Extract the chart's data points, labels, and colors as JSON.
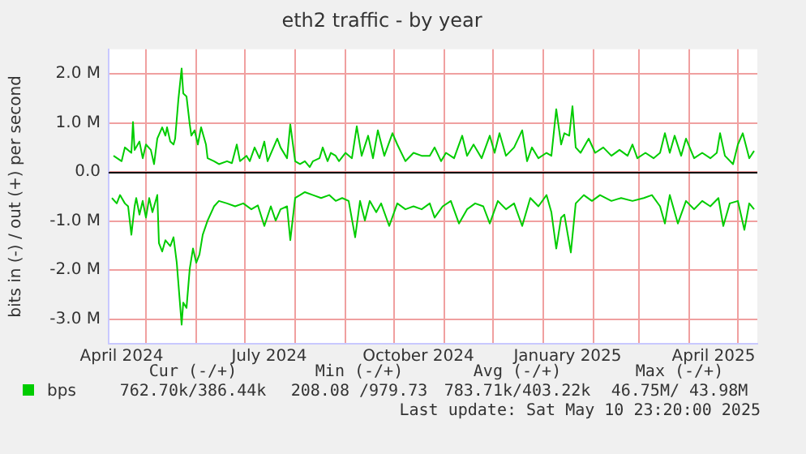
{
  "chart_data": {
    "type": "line",
    "title": "eth2 traffic - by year",
    "ylabel": "bits in (-) / out (+) per second",
    "xlim": [
      "2024-04-08",
      "2025-05-13"
    ],
    "xticks": [
      {
        "value": "2024-04-16",
        "label": "April 2024"
      },
      {
        "value": "2024-05-01",
        "label": null
      },
      {
        "value": "2024-06-01",
        "label": null
      },
      {
        "value": "2024-07-01",
        "label": null
      },
      {
        "value": "2024-07-16",
        "label": "July 2024"
      },
      {
        "value": "2024-08-01",
        "label": null
      },
      {
        "value": "2024-09-01",
        "label": null
      },
      {
        "value": "2024-10-01",
        "label": null
      },
      {
        "value": "2024-10-16",
        "label": "October 2024"
      },
      {
        "value": "2024-11-01",
        "label": null
      },
      {
        "value": "2024-12-01",
        "label": null
      },
      {
        "value": "2025-01-01",
        "label": null
      },
      {
        "value": "2025-01-16",
        "label": "January 2025"
      },
      {
        "value": "2025-02-01",
        "label": null
      },
      {
        "value": "2025-03-01",
        "label": null
      },
      {
        "value": "2025-04-01",
        "label": null
      },
      {
        "value": "2025-04-16",
        "label": "April 2025"
      },
      {
        "value": "2025-05-01",
        "label": null
      }
    ],
    "ylim": [
      -3.5,
      2.5
    ],
    "yticks": [
      {
        "value": -3,
        "label": "-3.0 M"
      },
      {
        "value": -2,
        "label": "-2.0 M"
      },
      {
        "value": -1,
        "label": "-1.0 M"
      },
      {
        "value": 0,
        "label": "0.0"
      },
      {
        "value": 1,
        "label": "1.0 M"
      },
      {
        "value": 2,
        "label": "2.0 M"
      }
    ],
    "grid": true,
    "legend": "bottom left",
    "marker": "none",
    "line_style": "solid",
    "ref_lines": [
      {
        "axis": "y",
        "value": 0,
        "color": "#000000"
      }
    ],
    "annotations": [
      "Cur (-/+)",
      "Min (-/+)",
      "Avg (-/+)",
      "Max (-/+)",
      "762.70k/386.44k",
      "208.08 /979.73",
      "783.71k/403.22k",
      "46.75M/ 43.98M",
      "Last update: Sat May 10 23:20:00 2025"
    ],
    "series": [
      {
        "name": "bps",
        "color": "#00cc00",
        "x": [
          "2024-04-11",
          "2024-04-16",
          "2024-04-18",
          "2024-04-22",
          "2024-04-23",
          "2024-04-24",
          "2024-04-27",
          "2024-04-29",
          "2024-05-01",
          "2024-05-04",
          "2024-05-06",
          "2024-05-08",
          "2024-05-11",
          "2024-05-13",
          "2024-05-14",
          "2024-05-16",
          "2024-05-18",
          "2024-05-19",
          "2024-05-21",
          "2024-05-23",
          "2024-05-24",
          "2024-05-26",
          "2024-05-28",
          "2024-05-29",
          "2024-05-31",
          "2024-06-02",
          "2024-06-04",
          "2024-06-07",
          "2024-06-08",
          "2024-06-12",
          "2024-06-15",
          "2024-06-20",
          "2024-06-23",
          "2024-06-26",
          "2024-06-28",
          "2024-07-02",
          "2024-07-04",
          "2024-07-07",
          "2024-07-10",
          "2024-07-13",
          "2024-07-15",
          "2024-07-18",
          "2024-07-21",
          "2024-07-23",
          "2024-07-27",
          "2024-07-29",
          "2024-08-01",
          "2024-08-04",
          "2024-08-07",
          "2024-08-10",
          "2024-08-12",
          "2024-08-16",
          "2024-08-18",
          "2024-08-21",
          "2024-08-23",
          "2024-08-26",
          "2024-08-28",
          "2024-09-01",
          "2024-09-05",
          "2024-09-08",
          "2024-09-11",
          "2024-09-15",
          "2024-09-18",
          "2024-09-21",
          "2024-09-25",
          "2024-09-30",
          "2024-10-03",
          "2024-10-08",
          "2024-10-13",
          "2024-10-18",
          "2024-10-23",
          "2024-10-26",
          "2024-10-30",
          "2024-11-02",
          "2024-11-07",
          "2024-11-12",
          "2024-11-15",
          "2024-11-19",
          "2024-11-24",
          "2024-11-29",
          "2024-12-02",
          "2024-12-05",
          "2024-12-09",
          "2024-12-14",
          "2024-12-19",
          "2024-12-22",
          "2024-12-25",
          "2024-12-29",
          "2025-01-03",
          "2025-01-06",
          "2025-01-09",
          "2025-01-12",
          "2025-01-14",
          "2025-01-17",
          "2025-01-19",
          "2025-01-21",
          "2025-01-24",
          "2025-01-29",
          "2025-02-02",
          "2025-02-07",
          "2025-02-12",
          "2025-02-17",
          "2025-02-22",
          "2025-02-25",
          "2025-02-28",
          "2025-03-05",
          "2025-03-10",
          "2025-03-14",
          "2025-03-17",
          "2025-03-20",
          "2025-03-23",
          "2025-03-27",
          "2025-03-30",
          "2025-04-04",
          "2025-04-09",
          "2025-04-14",
          "2025-04-18",
          "2025-04-20",
          "2025-04-23",
          "2025-04-28",
          "2025-05-01",
          "2025-05-04",
          "2025-05-08",
          "2025-05-11"
        ],
        "values": [
          0.33,
          0.22,
          0.5,
          0.39,
          1.02,
          0.45,
          0.62,
          0.28,
          0.56,
          0.45,
          0.16,
          0.68,
          0.91,
          0.74,
          0.91,
          0.62,
          0.56,
          0.68,
          1.48,
          2.11,
          1.6,
          1.54,
          0.97,
          0.74,
          0.85,
          0.56,
          0.91,
          0.56,
          0.28,
          0.22,
          0.16,
          0.22,
          0.18,
          0.56,
          0.22,
          0.33,
          0.22,
          0.5,
          0.28,
          0.62,
          0.22,
          0.45,
          0.68,
          0.5,
          0.28,
          0.97,
          0.22,
          0.16,
          0.22,
          0.1,
          0.22,
          0.28,
          0.5,
          0.22,
          0.39,
          0.33,
          0.22,
          0.39,
          0.28,
          0.93,
          0.33,
          0.74,
          0.28,
          0.85,
          0.33,
          0.79,
          0.56,
          0.22,
          0.39,
          0.33,
          0.33,
          0.5,
          0.22,
          0.39,
          0.28,
          0.74,
          0.33,
          0.56,
          0.28,
          0.74,
          0.39,
          0.79,
          0.33,
          0.5,
          0.85,
          0.22,
          0.5,
          0.28,
          0.39,
          0.33,
          1.28,
          0.56,
          0.79,
          0.74,
          1.34,
          0.5,
          0.39,
          0.68,
          0.39,
          0.5,
          0.33,
          0.45,
          0.33,
          0.56,
          0.28,
          0.39,
          0.28,
          0.39,
          0.79,
          0.39,
          0.74,
          0.33,
          0.68,
          0.28,
          0.39,
          0.28,
          0.39,
          0.79,
          0.33,
          0.16,
          0.56,
          0.79,
          0.28,
          0.43
        ]
      },
      {
        "color": "#00cc00",
        "x": [
          "2024-04-10",
          "2024-04-13",
          "2024-04-15",
          "2024-04-18",
          "2024-04-20",
          "2024-04-22",
          "2024-04-24",
          "2024-04-25",
          "2024-04-27",
          "2024-04-29",
          "2024-05-01",
          "2024-05-03",
          "2024-05-05",
          "2024-05-08",
          "2024-05-09",
          "2024-05-11",
          "2024-05-13",
          "2024-05-16",
          "2024-05-18",
          "2024-05-20",
          "2024-05-23",
          "2024-05-24",
          "2024-05-26",
          "2024-05-28",
          "2024-05-30",
          "2024-06-01",
          "2024-06-03",
          "2024-06-05",
          "2024-06-08",
          "2024-06-12",
          "2024-06-15",
          "2024-06-20",
          "2024-06-25",
          "2024-06-30",
          "2024-07-05",
          "2024-07-09",
          "2024-07-13",
          "2024-07-17",
          "2024-07-20",
          "2024-07-23",
          "2024-07-27",
          "2024-07-29",
          "2024-08-01",
          "2024-08-04",
          "2024-08-07",
          "2024-08-12",
          "2024-08-17",
          "2024-08-22",
          "2024-08-26",
          "2024-08-30",
          "2024-09-03",
          "2024-09-07",
          "2024-09-10",
          "2024-09-13",
          "2024-09-16",
          "2024-09-20",
          "2024-09-23",
          "2024-09-28",
          "2024-10-03",
          "2024-10-08",
          "2024-10-13",
          "2024-10-18",
          "2024-10-23",
          "2024-10-26",
          "2024-10-31",
          "2024-11-05",
          "2024-11-10",
          "2024-11-15",
          "2024-11-20",
          "2024-11-25",
          "2024-11-29",
          "2024-12-04",
          "2024-12-09",
          "2024-12-14",
          "2024-12-19",
          "2024-12-24",
          "2024-12-29",
          "2025-01-03",
          "2025-01-06",
          "2025-01-09",
          "2025-01-12",
          "2025-01-14",
          "2025-01-18",
          "2025-01-21",
          "2025-01-26",
          "2025-01-31",
          "2025-02-05",
          "2025-02-12",
          "2025-02-18",
          "2025-02-25",
          "2025-03-04",
          "2025-03-09",
          "2025-03-14",
          "2025-03-17",
          "2025-03-20",
          "2025-03-25",
          "2025-03-30",
          "2025-04-04",
          "2025-04-09",
          "2025-04-14",
          "2025-04-19",
          "2025-04-22",
          "2025-04-26",
          "2025-05-01",
          "2025-05-05",
          "2025-05-08",
          "2025-05-11"
        ],
        "values": [
          -0.53,
          -0.64,
          -0.47,
          -0.64,
          -0.7,
          -1.28,
          -0.7,
          -0.53,
          -0.87,
          -0.59,
          -0.93,
          -0.53,
          -0.82,
          -0.47,
          -1.45,
          -1.62,
          -1.39,
          -1.51,
          -1.33,
          -1.85,
          -3.11,
          -2.66,
          -2.77,
          -1.97,
          -1.56,
          -1.85,
          -1.68,
          -1.28,
          -0.99,
          -0.7,
          -0.59,
          -0.64,
          -0.7,
          -0.64,
          -0.76,
          -0.68,
          -1.1,
          -0.7,
          -0.99,
          -0.76,
          -0.7,
          -1.39,
          -0.53,
          -0.47,
          -0.41,
          -0.47,
          -0.53,
          -0.47,
          -0.59,
          -0.53,
          -0.59,
          -1.33,
          -0.59,
          -0.99,
          -0.59,
          -0.82,
          -0.64,
          -1.1,
          -0.64,
          -0.76,
          -0.7,
          -0.76,
          -0.64,
          -0.93,
          -0.7,
          -0.59,
          -1.05,
          -0.76,
          -0.64,
          -0.7,
          -1.05,
          -0.59,
          -0.76,
          -0.64,
          -1.1,
          -0.53,
          -0.7,
          -0.47,
          -0.82,
          -1.56,
          -0.93,
          -0.87,
          -1.64,
          -0.64,
          -0.47,
          -0.59,
          -0.47,
          -0.59,
          -0.53,
          -0.59,
          -0.53,
          -0.47,
          -0.7,
          -1.05,
          -0.47,
          -1.05,
          -0.59,
          -0.76,
          -0.59,
          -0.7,
          -0.53,
          -1.1,
          -0.64,
          -0.59,
          -1.18,
          -0.64,
          -0.76
        ]
      }
    ]
  }
}
